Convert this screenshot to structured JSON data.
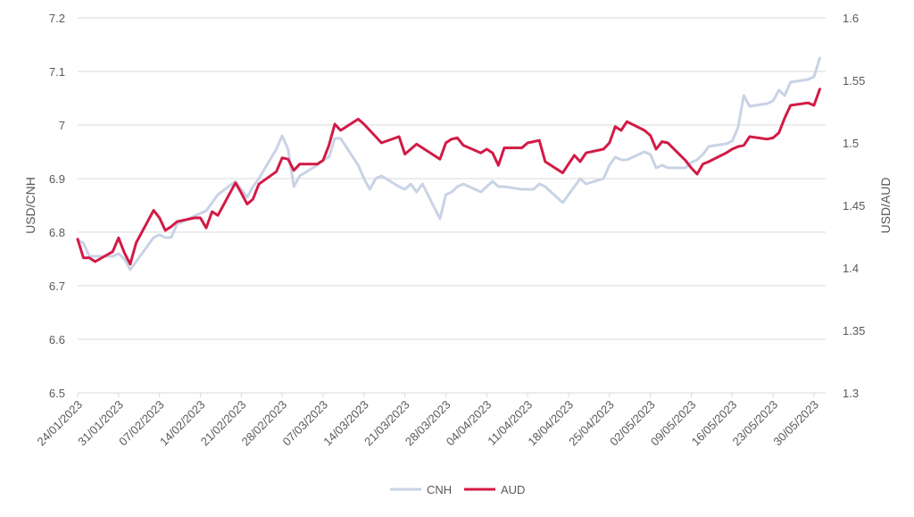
{
  "chart_data": {
    "type": "line",
    "title": "",
    "xlabel": "",
    "ylabel": "USD/CNH",
    "y2label": "USD/AUD",
    "ylim": [
      6.5,
      7.2
    ],
    "y2lim": [
      1.3,
      1.6
    ],
    "yticks": [
      "6.5",
      "6.6",
      "6.7",
      "6.8",
      "6.9",
      "7",
      "7.1",
      "7.2"
    ],
    "y2ticks": [
      "1.3",
      "1.35",
      "1.4",
      "1.45",
      "1.5",
      "1.55",
      "1.6"
    ],
    "grid": "horizontal",
    "legend": "bottom",
    "xrange": [
      "2023-01-24",
      "2023-06-01"
    ],
    "xticks": [
      "24/01/2023",
      "31/01/2023",
      "07/02/2023",
      "14/02/2023",
      "21/02/2023",
      "28/02/2023",
      "07/03/2023",
      "14/03/2023",
      "21/03/2023",
      "28/03/2023",
      "04/04/2023",
      "11/04/2023",
      "18/04/2023",
      "25/04/2023",
      "02/05/2023",
      "09/05/2023",
      "16/05/2023",
      "23/05/2023",
      "30/05/2023"
    ],
    "series": [
      {
        "name": "CNH",
        "axis": "left",
        "color": "#c9d3e6",
        "points": [
          [
            "2023-01-24",
            6.785
          ],
          [
            "2023-01-25",
            6.78
          ],
          [
            "2023-01-26",
            6.755
          ],
          [
            "2023-01-27",
            6.755
          ],
          [
            "2023-01-30",
            6.755
          ],
          [
            "2023-01-31",
            6.76
          ],
          [
            "2023-02-01",
            6.75
          ],
          [
            "2023-02-02",
            6.73
          ],
          [
            "2023-02-03",
            6.745
          ],
          [
            "2023-02-06",
            6.79
          ],
          [
            "2023-02-07",
            6.795
          ],
          [
            "2023-02-08",
            6.79
          ],
          [
            "2023-02-09",
            6.79
          ],
          [
            "2023-02-10",
            6.815
          ],
          [
            "2023-02-13",
            6.83
          ],
          [
            "2023-02-14",
            6.835
          ],
          [
            "2023-02-15",
            6.84
          ],
          [
            "2023-02-16",
            6.855
          ],
          [
            "2023-02-17",
            6.87
          ],
          [
            "2023-02-20",
            6.895
          ],
          [
            "2023-02-21",
            6.88
          ],
          [
            "2023-02-22",
            6.865
          ],
          [
            "2023-02-23",
            6.885
          ],
          [
            "2023-02-24",
            6.9
          ],
          [
            "2023-02-27",
            6.955
          ],
          [
            "2023-02-28",
            6.98
          ],
          [
            "2023-03-01",
            6.955
          ],
          [
            "2023-03-02",
            6.885
          ],
          [
            "2023-03-03",
            6.905
          ],
          [
            "2023-03-06",
            6.925
          ],
          [
            "2023-03-07",
            6.935
          ],
          [
            "2023-03-08",
            6.94
          ],
          [
            "2023-03-09",
            6.975
          ],
          [
            "2023-03-10",
            6.975
          ],
          [
            "2023-03-13",
            6.925
          ],
          [
            "2023-03-14",
            6.9
          ],
          [
            "2023-03-15",
            6.88
          ],
          [
            "2023-03-16",
            6.9
          ],
          [
            "2023-03-17",
            6.905
          ],
          [
            "2023-03-20",
            6.885
          ],
          [
            "2023-03-21",
            6.88
          ],
          [
            "2023-03-22",
            6.89
          ],
          [
            "2023-03-23",
            6.875
          ],
          [
            "2023-03-24",
            6.89
          ],
          [
            "2023-03-27",
            6.825
          ],
          [
            "2023-03-28",
            6.87
          ],
          [
            "2023-03-29",
            6.875
          ],
          [
            "2023-03-30",
            6.885
          ],
          [
            "2023-03-31",
            6.89
          ],
          [
            "2023-04-03",
            6.875
          ],
          [
            "2023-04-04",
            6.885
          ],
          [
            "2023-04-05",
            6.895
          ],
          [
            "2023-04-06",
            6.885
          ],
          [
            "2023-04-07",
            6.885
          ],
          [
            "2023-04-10",
            6.88
          ],
          [
            "2023-04-11",
            6.88
          ],
          [
            "2023-04-12",
            6.88
          ],
          [
            "2023-04-13",
            6.89
          ],
          [
            "2023-04-14",
            6.885
          ],
          [
            "2023-04-17",
            6.855
          ],
          [
            "2023-04-18",
            6.87
          ],
          [
            "2023-04-19",
            6.885
          ],
          [
            "2023-04-20",
            6.9
          ],
          [
            "2023-04-21",
            6.89
          ],
          [
            "2023-04-24",
            6.9
          ],
          [
            "2023-04-25",
            6.925
          ],
          [
            "2023-04-26",
            6.94
          ],
          [
            "2023-04-27",
            6.935
          ],
          [
            "2023-04-28",
            6.935
          ],
          [
            "2023-05-01",
            6.95
          ],
          [
            "2023-05-02",
            6.945
          ],
          [
            "2023-05-03",
            6.92
          ],
          [
            "2023-05-04",
            6.925
          ],
          [
            "2023-05-05",
            6.92
          ],
          [
            "2023-05-08",
            6.92
          ],
          [
            "2023-05-09",
            6.93
          ],
          [
            "2023-05-10",
            6.935
          ],
          [
            "2023-05-11",
            6.945
          ],
          [
            "2023-05-12",
            6.96
          ],
          [
            "2023-05-15",
            6.965
          ],
          [
            "2023-05-16",
            6.97
          ],
          [
            "2023-05-17",
            6.995
          ],
          [
            "2023-05-18",
            7.055
          ],
          [
            "2023-05-19",
            7.035
          ],
          [
            "2023-05-22",
            7.04
          ],
          [
            "2023-05-23",
            7.045
          ],
          [
            "2023-05-24",
            7.065
          ],
          [
            "2023-05-25",
            7.055
          ],
          [
            "2023-05-26",
            7.08
          ],
          [
            "2023-05-29",
            7.085
          ],
          [
            "2023-05-30",
            7.09
          ],
          [
            "2023-05-31",
            7.125
          ]
        ]
      },
      {
        "name": "AUD",
        "axis": "right",
        "color": "#d21a45",
        "points": [
          [
            "2023-01-24",
            1.423
          ],
          [
            "2023-01-25",
            1.408
          ],
          [
            "2023-01-26",
            1.408
          ],
          [
            "2023-01-27",
            1.405
          ],
          [
            "2023-01-30",
            1.413
          ],
          [
            "2023-01-31",
            1.424
          ],
          [
            "2023-02-01",
            1.412
          ],
          [
            "2023-02-02",
            1.403
          ],
          [
            "2023-02-03",
            1.42
          ],
          [
            "2023-02-06",
            1.446
          ],
          [
            "2023-02-07",
            1.44
          ],
          [
            "2023-02-08",
            1.43
          ],
          [
            "2023-02-09",
            1.433
          ],
          [
            "2023-02-10",
            1.437
          ],
          [
            "2023-02-13",
            1.44
          ],
          [
            "2023-02-14",
            1.44
          ],
          [
            "2023-02-15",
            1.432
          ],
          [
            "2023-02-16",
            1.445
          ],
          [
            "2023-02-17",
            1.442
          ],
          [
            "2023-02-20",
            1.468
          ],
          [
            "2023-02-21",
            1.46
          ],
          [
            "2023-02-22",
            1.451
          ],
          [
            "2023-02-23",
            1.455
          ],
          [
            "2023-02-24",
            1.467
          ],
          [
            "2023-02-27",
            1.477
          ],
          [
            "2023-02-28",
            1.488
          ],
          [
            "2023-03-01",
            1.487
          ],
          [
            "2023-03-02",
            1.478
          ],
          [
            "2023-03-03",
            1.483
          ],
          [
            "2023-03-06",
            1.483
          ],
          [
            "2023-03-07",
            1.486
          ],
          [
            "2023-03-08",
            1.498
          ],
          [
            "2023-03-09",
            1.515
          ],
          [
            "2023-03-10",
            1.51
          ],
          [
            "2023-03-13",
            1.519
          ],
          [
            "2023-03-14",
            1.515
          ],
          [
            "2023-03-15",
            1.51
          ],
          [
            "2023-03-16",
            1.505
          ],
          [
            "2023-03-17",
            1.5
          ],
          [
            "2023-03-20",
            1.505
          ],
          [
            "2023-03-21",
            1.491
          ],
          [
            "2023-03-22",
            1.495
          ],
          [
            "2023-03-23",
            1.499
          ],
          [
            "2023-03-24",
            1.496
          ],
          [
            "2023-03-27",
            1.487
          ],
          [
            "2023-03-28",
            1.5
          ],
          [
            "2023-03-29",
            1.503
          ],
          [
            "2023-03-30",
            1.504
          ],
          [
            "2023-03-31",
            1.498
          ],
          [
            "2023-04-03",
            1.492
          ],
          [
            "2023-04-04",
            1.495
          ],
          [
            "2023-04-05",
            1.492
          ],
          [
            "2023-04-06",
            1.482
          ],
          [
            "2023-04-07",
            1.496
          ],
          [
            "2023-04-10",
            1.496
          ],
          [
            "2023-04-11",
            1.5
          ],
          [
            "2023-04-12",
            1.501
          ],
          [
            "2023-04-13",
            1.502
          ],
          [
            "2023-04-14",
            1.485
          ],
          [
            "2023-04-17",
            1.476
          ],
          [
            "2023-04-18",
            1.483
          ],
          [
            "2023-04-19",
            1.49
          ],
          [
            "2023-04-20",
            1.485
          ],
          [
            "2023-04-21",
            1.492
          ],
          [
            "2023-04-24",
            1.495
          ],
          [
            "2023-04-25",
            1.5
          ],
          [
            "2023-04-26",
            1.513
          ],
          [
            "2023-04-27",
            1.51
          ],
          [
            "2023-04-28",
            1.517
          ],
          [
            "2023-05-01",
            1.51
          ],
          [
            "2023-05-02",
            1.506
          ],
          [
            "2023-05-03",
            1.495
          ],
          [
            "2023-05-04",
            1.501
          ],
          [
            "2023-05-05",
            1.5
          ],
          [
            "2023-05-08",
            1.486
          ],
          [
            "2023-05-09",
            1.48
          ],
          [
            "2023-05-10",
            1.475
          ],
          [
            "2023-05-11",
            1.483
          ],
          [
            "2023-05-12",
            1.485
          ],
          [
            "2023-05-15",
            1.492
          ],
          [
            "2023-05-16",
            1.495
          ],
          [
            "2023-05-17",
            1.497
          ],
          [
            "2023-05-18",
            1.498
          ],
          [
            "2023-05-19",
            1.505
          ],
          [
            "2023-05-22",
            1.503
          ],
          [
            "2023-05-23",
            1.504
          ],
          [
            "2023-05-24",
            1.508
          ],
          [
            "2023-05-25",
            1.52
          ],
          [
            "2023-05-26",
            1.53
          ],
          [
            "2023-05-29",
            1.532
          ],
          [
            "2023-05-30",
            1.53
          ],
          [
            "2023-05-31",
            1.543
          ]
        ]
      }
    ]
  }
}
